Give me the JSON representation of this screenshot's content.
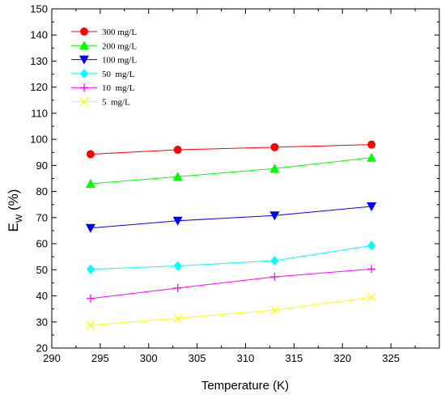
{
  "chart_data": {
    "type": "line",
    "title": "",
    "xlabel": "Temperature (K)",
    "ylabel_main": "E",
    "ylabel_sub": "W",
    "ylabel_unit": "(%)",
    "xlim": [
      290,
      330
    ],
    "ylim": [
      20,
      150
    ],
    "xticks": [
      "290",
      "295",
      "300",
      "305",
      "310",
      "315",
      "320",
      "325"
    ],
    "yticks": [
      "20",
      "30",
      "40",
      "50",
      "60",
      "70",
      "80",
      "90",
      "100",
      "110",
      "120",
      "130",
      "140",
      "150"
    ],
    "grid": false,
    "legend_position": "top-left",
    "x": [
      294,
      303,
      313,
      323
    ],
    "series": [
      {
        "name": "300 mg/L",
        "color": "#ff0000",
        "marker": "circle",
        "values": [
          94.3,
          96.0,
          97.0,
          98.0
        ]
      },
      {
        "name": "200 mg/L",
        "color": "#00ff00",
        "marker": "triangle-up",
        "values": [
          83.0,
          85.7,
          88.8,
          93.0
        ]
      },
      {
        "name": "100 mg/L",
        "color": "#0000ff",
        "marker": "triangle-down",
        "values": [
          66.0,
          68.8,
          70.8,
          74.3
        ]
      },
      {
        "name": "50  mg/L",
        "color": "#00ffff",
        "marker": "diamond",
        "values": [
          50.2,
          51.5,
          53.5,
          59.3
        ]
      },
      {
        "name": "10  mg/L",
        "color": "#ff00ff",
        "marker": "plus",
        "values": [
          39.0,
          43.0,
          47.3,
          50.3
        ]
      },
      {
        "name": "5  mg/L",
        "color": "#ffff00",
        "marker": "cross",
        "values": [
          28.8,
          31.4,
          34.6,
          39.5
        ]
      }
    ]
  }
}
